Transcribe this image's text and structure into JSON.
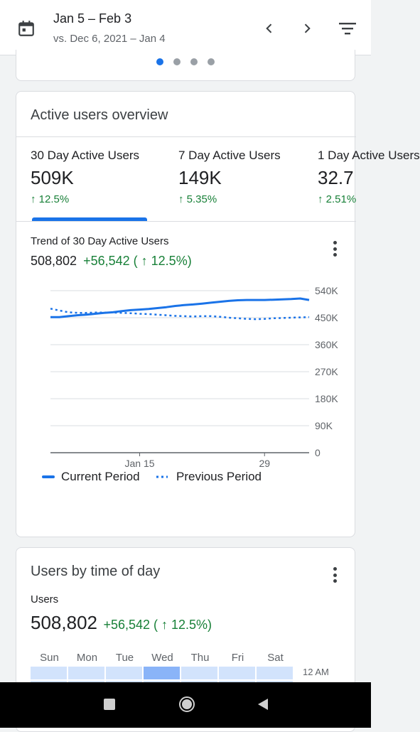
{
  "header": {
    "title": "Jan 5 – Feb 3",
    "subtitle": "vs. Dec 6, 2021 – Jan 4",
    "icons": {
      "calendar": "calendar-icon",
      "prev": "chevron-left-icon",
      "next": "chevron-right-icon",
      "filter": "filter-icon"
    }
  },
  "carousel": {
    "page_count": 4,
    "active_index": 0
  },
  "active_users": {
    "title": "Active users overview",
    "metrics": [
      {
        "label": "30 Day Active Users",
        "value": "509K",
        "change": "↑ 12.5%"
      },
      {
        "label": "7 Day Active Users",
        "value": "149K",
        "change": "↑ 5.35%"
      },
      {
        "label": "1 Day Active Users",
        "value": "32.7",
        "change": "↑ 2.51%"
      }
    ],
    "trend": {
      "title": "Trend of 30 Day Active Users",
      "value": "508,802",
      "change": "+56,542 ( ↑ 12.5%)"
    }
  },
  "chart_data": {
    "type": "line",
    "x_tick_labels": [
      "Jan 15",
      "29"
    ],
    "y_tick_labels": [
      "0",
      "90K",
      "180K",
      "270K",
      "360K",
      "450K",
      "540K"
    ],
    "ylim": [
      0,
      540000
    ],
    "legend_position": "bottom-left",
    "series": [
      {
        "name": "Current Period",
        "style": "solid",
        "color": "#1a73e8",
        "values": [
          452000,
          452000,
          455000,
          458000,
          460000,
          463000,
          466000,
          468000,
          472000,
          475000,
          477000,
          479000,
          482000,
          485000,
          489000,
          492000,
          494000,
          497000,
          500000,
          503000,
          506000,
          508000,
          509000,
          509000,
          509000,
          510000,
          511000,
          512000,
          514000,
          509000
        ]
      },
      {
        "name": "Previous Period",
        "style": "dotted",
        "color": "#1a73e8",
        "values": [
          480000,
          474000,
          468000,
          466000,
          466000,
          467000,
          467000,
          467000,
          466000,
          465000,
          463000,
          462000,
          460000,
          458000,
          456000,
          455000,
          454000,
          455000,
          455000,
          453000,
          450000,
          448000,
          446000,
          445000,
          446000,
          448000,
          449000,
          450000,
          451000,
          452000
        ]
      }
    ]
  },
  "users_time": {
    "title": "Users by time of day",
    "label": "Users",
    "value": "508,802",
    "change": "+56,542 ( ↑ 12.5%)",
    "days": [
      "Sun",
      "Mon",
      "Tue",
      "Wed",
      "Thu",
      "Fri",
      "Sat"
    ],
    "hour_label": "12 AM",
    "highlight_day_index": 3
  },
  "navbar": {
    "icons": [
      "recents-icon",
      "home-icon",
      "back-icon"
    ]
  }
}
